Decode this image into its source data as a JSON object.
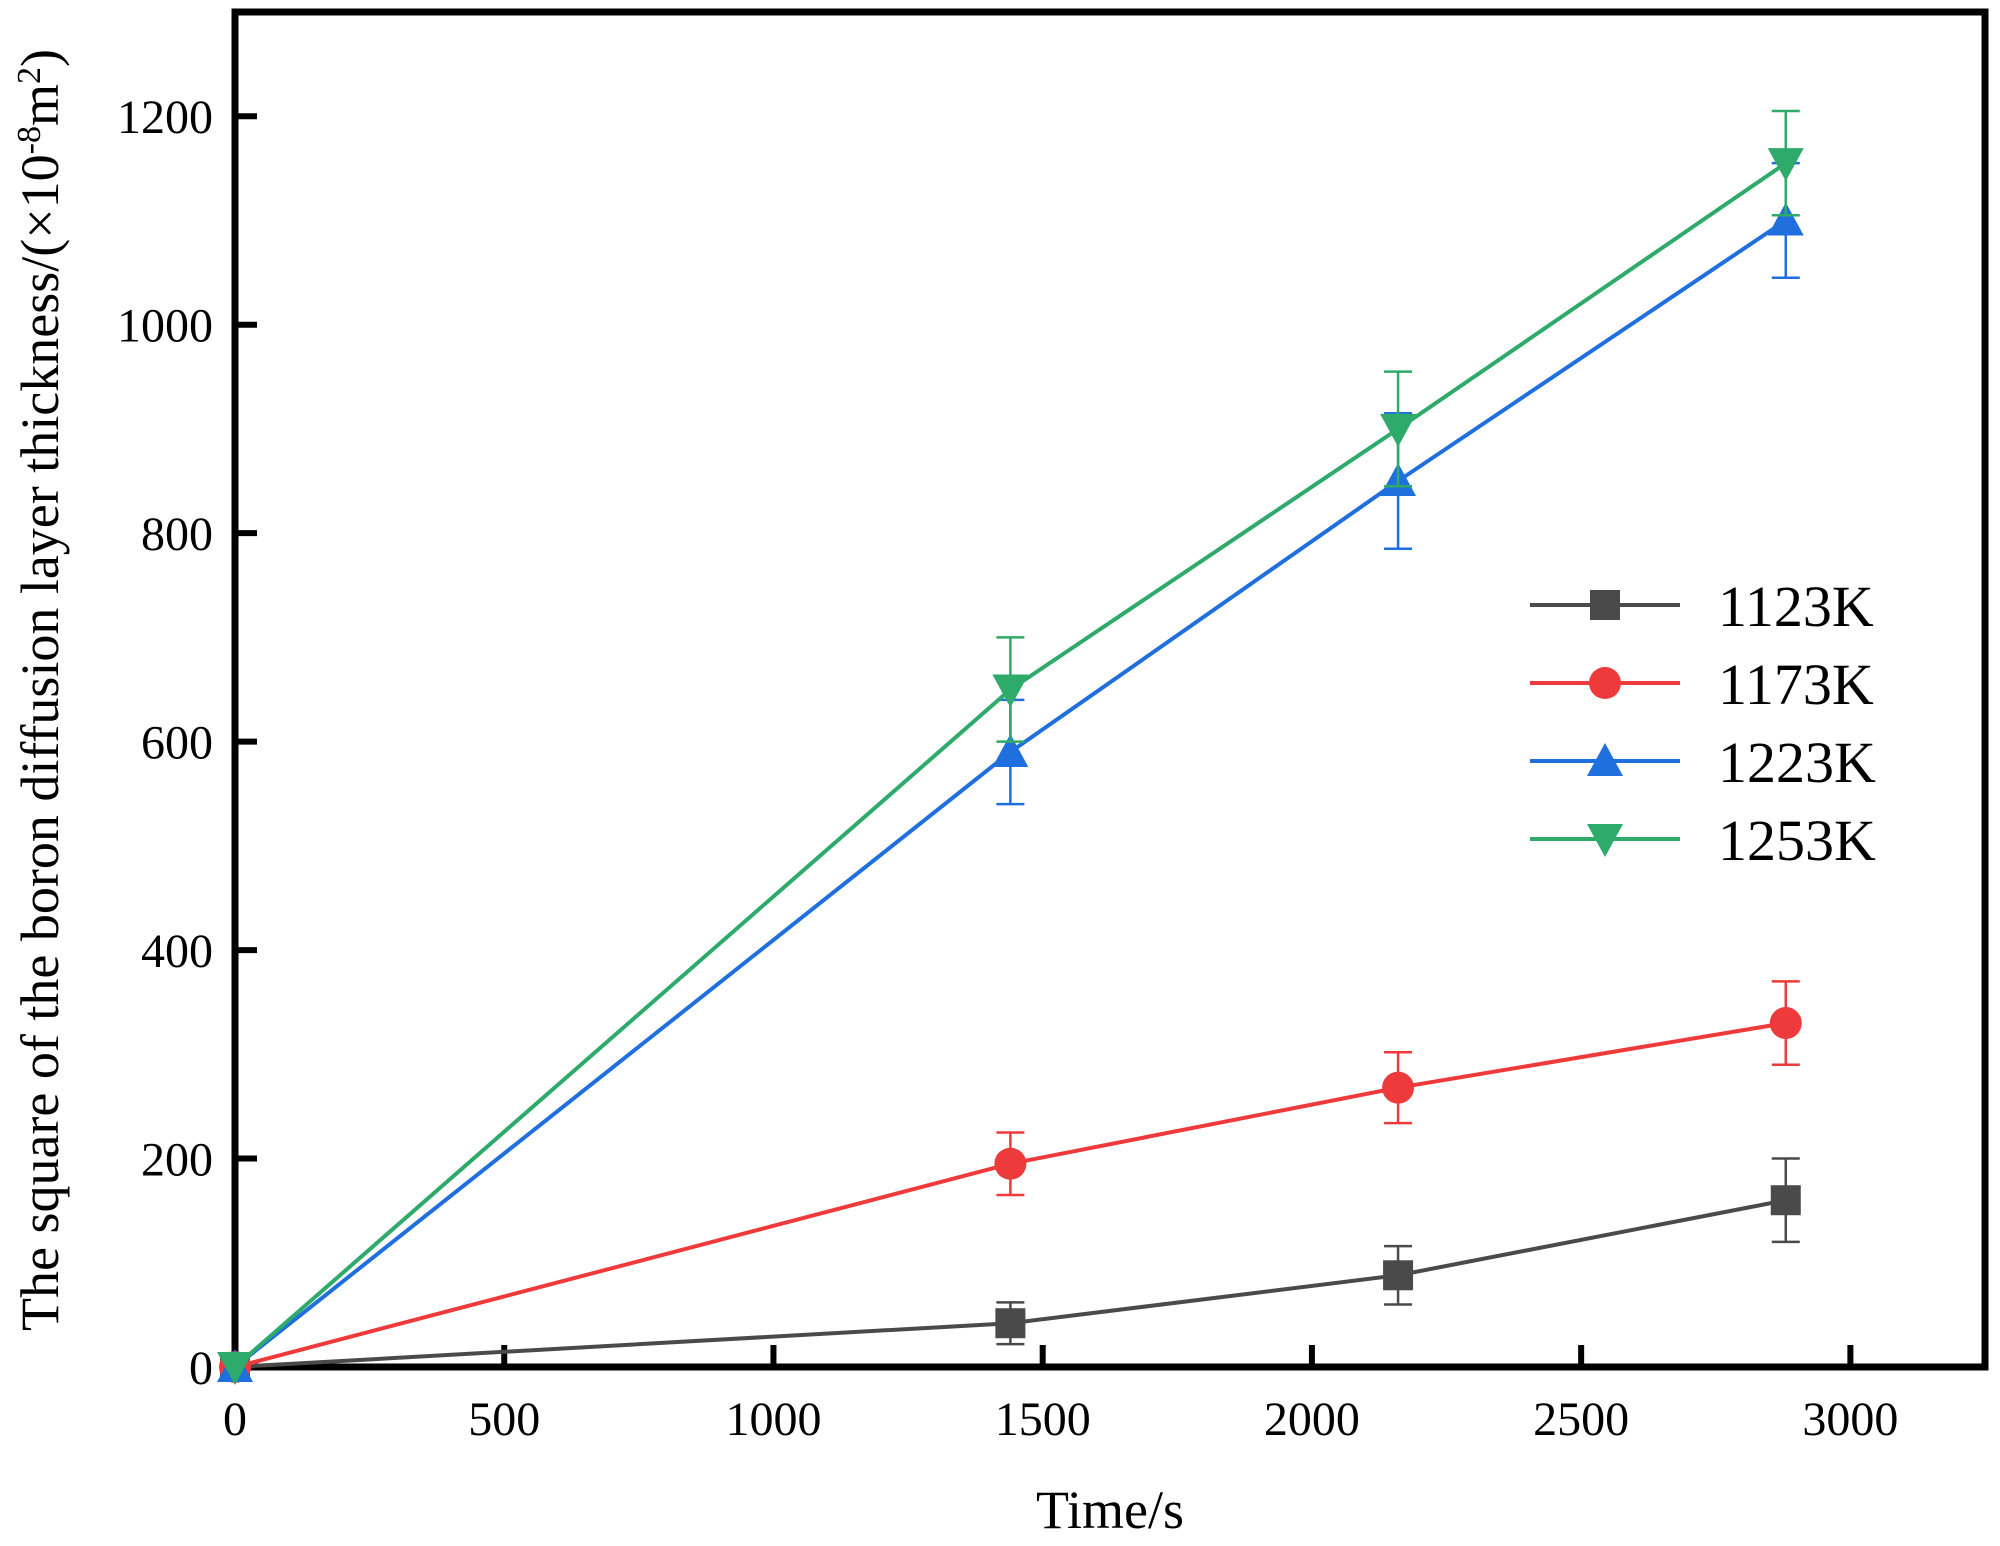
{
  "chart_data": {
    "type": "line",
    "title": "",
    "xlabel": "Time/s",
    "ylabel": "The square of the boron diffusion layer thickness/(×10",
    "ylabel_exp1": "-8",
    "ylabel_mid": "m",
    "ylabel_exp2": "2",
    "ylabel_end": ")",
    "xlim": [
      0,
      3250
    ],
    "ylim": [
      0,
      1300
    ],
    "xticks": [
      0,
      500,
      1000,
      1500,
      2000,
      2500,
      3000
    ],
    "yticks": [
      0,
      200,
      400,
      600,
      800,
      1000,
      1200
    ],
    "grid": false,
    "legend_position": "center-right",
    "x": [
      0,
      1440,
      2160,
      2880
    ],
    "series": [
      {
        "name": "1123K",
        "color": "#4a4a4a",
        "marker": "square",
        "values": [
          0,
          42,
          88,
          160
        ],
        "errors": [
          0,
          20,
          28,
          40
        ]
      },
      {
        "name": "1173K",
        "color": "#ee3a3a",
        "marker": "circle",
        "values": [
          0,
          195,
          268,
          330
        ],
        "errors": [
          0,
          30,
          34,
          40
        ]
      },
      {
        "name": "1223K",
        "color": "#1f6fdf",
        "marker": "triangle-up",
        "values": [
          0,
          590,
          850,
          1100
        ],
        "errors": [
          0,
          50,
          65,
          55
        ]
      },
      {
        "name": "1253K",
        "color": "#2eaa6a",
        "marker": "triangle-down",
        "values": [
          0,
          650,
          900,
          1155
        ],
        "errors": [
          0,
          50,
          55,
          50
        ]
      }
    ]
  }
}
